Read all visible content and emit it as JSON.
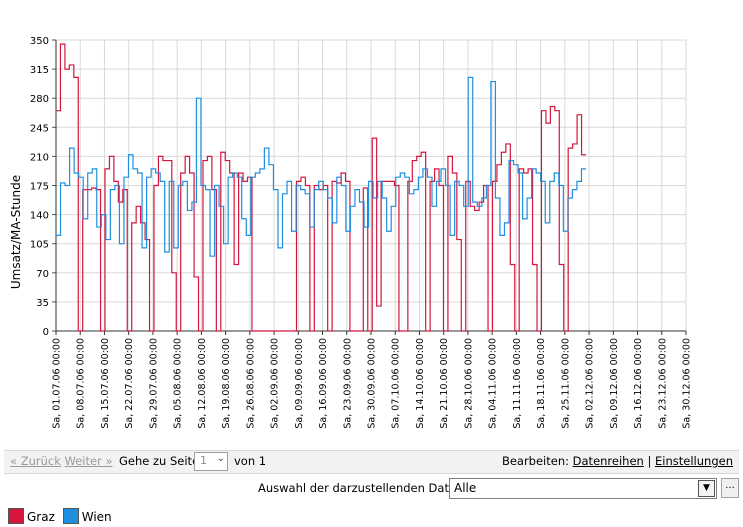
{
  "chart_data": {
    "type": "line",
    "step": true,
    "ylabel": "Umsatz/MA-Stunde",
    "ylim": [
      0,
      350
    ],
    "yticks": [
      0,
      35,
      70,
      105,
      140,
      175,
      210,
      245,
      280,
      315,
      350
    ],
    "grid": true,
    "x_tick_labels": [
      "Sa, 01.07.06 00:00",
      "Sa, 08.07.06 00:00",
      "Sa, 15.07.06 00:00",
      "Sa, 22.07.06 00:00",
      "Sa, 29.07.06 00:00",
      "Sa, 05.08.06 00:00",
      "Sa, 12.08.06 00:00",
      "Sa, 19.08.06 00:00",
      "Sa, 26.08.06 00:00",
      "Sa, 02.09.06 00:00",
      "Sa, 09.09.06 00:00",
      "Sa, 16.09.06 00:00",
      "Sa, 23.09.06 00:00",
      "Sa, 30.09.06 00:00",
      "Sa, 07.10.06 00:00",
      "Sa, 14.10.06 00:00",
      "Sa, 21.10.06 00:00",
      "Sa, 28.10.06 00:00",
      "Sa, 04.11.06 00:00",
      "Sa, 11.11.06 00:00",
      "Sa, 18.11.06 00:00",
      "Sa, 25.11.06 00:00",
      "Sa, 02.12.06 00:00",
      "Sa, 09.12.06 00:00",
      "Sa, 16.12.06 00:00",
      "Sa, 23.12.06 00:00",
      "Sa, 30.12.06 00:00"
    ],
    "legend_position": "bottom-left",
    "series": [
      {
        "name": "Graz",
        "color": "#d4163c",
        "values": [
          265,
          345,
          315,
          320,
          305,
          0,
          170,
          170,
          172,
          170,
          0,
          195,
          210,
          180,
          155,
          170,
          0,
          130,
          150,
          130,
          110,
          0,
          175,
          210,
          205,
          205,
          70,
          0,
          190,
          210,
          190,
          65,
          0,
          205,
          210,
          170,
          0,
          215,
          205,
          190,
          80,
          190,
          180,
          185,
          0,
          0,
          0,
          0,
          0,
          0,
          0,
          0,
          0,
          0,
          180,
          185,
          175,
          0,
          175,
          170,
          175,
          0,
          180,
          178,
          190,
          180,
          0,
          0,
          0,
          172,
          0,
          232,
          30,
          180,
          180,
          180,
          175,
          0,
          0,
          180,
          205,
          210,
          215,
          0,
          180,
          195,
          175,
          0,
          210,
          190,
          110,
          0,
          180,
          150,
          145,
          155,
          175,
          0,
          180,
          200,
          215,
          225,
          80,
          0,
          195,
          190,
          195,
          80,
          0,
          265,
          250,
          270,
          265,
          80,
          0,
          220,
          225,
          260,
          212
        ]
      },
      {
        "name": "Wien",
        "color": "#1f8fe0",
        "values": [
          115,
          178,
          175,
          220,
          190,
          185,
          135,
          190,
          195,
          125,
          140,
          110,
          170,
          175,
          105,
          185,
          212,
          195,
          190,
          100,
          185,
          195,
          190,
          180,
          95,
          180,
          100,
          175,
          180,
          145,
          155,
          280,
          175,
          170,
          90,
          175,
          150,
          105,
          185,
          190,
          185,
          135,
          115,
          185,
          190,
          195,
          220,
          200,
          170,
          100,
          165,
          180,
          120,
          175,
          170,
          165,
          125,
          170,
          180,
          170,
          160,
          130,
          185,
          175,
          120,
          150,
          170,
          155,
          125,
          180,
          160,
          180,
          160,
          120,
          150,
          185,
          190,
          185,
          165,
          170,
          185,
          195,
          185,
          150,
          180,
          195,
          175,
          115,
          180,
          175,
          150,
          305,
          155,
          150,
          160,
          175,
          300,
          160,
          115,
          130,
          205,
          200,
          190,
          135,
          160,
          195,
          190,
          180,
          130,
          180,
          190,
          175,
          120,
          160,
          170,
          180,
          195
        ]
      }
    ]
  },
  "pager": {
    "back_label": "« Zurück",
    "next_label": "Weiter »",
    "goto_label": "Gehe zu Seite",
    "page_value": "1",
    "of_label": "von 1",
    "edit_label": "Bearbeiten:",
    "series_link": "Datenreihen",
    "separator": "|",
    "settings_link": "Einstellungen"
  },
  "series_select": {
    "label": "Auswahl der darzustellenden Datenreihe:",
    "value": "Alle",
    "more_label": "..."
  },
  "legend": {
    "graz_label": "Graz",
    "wien_label": "Wien"
  }
}
